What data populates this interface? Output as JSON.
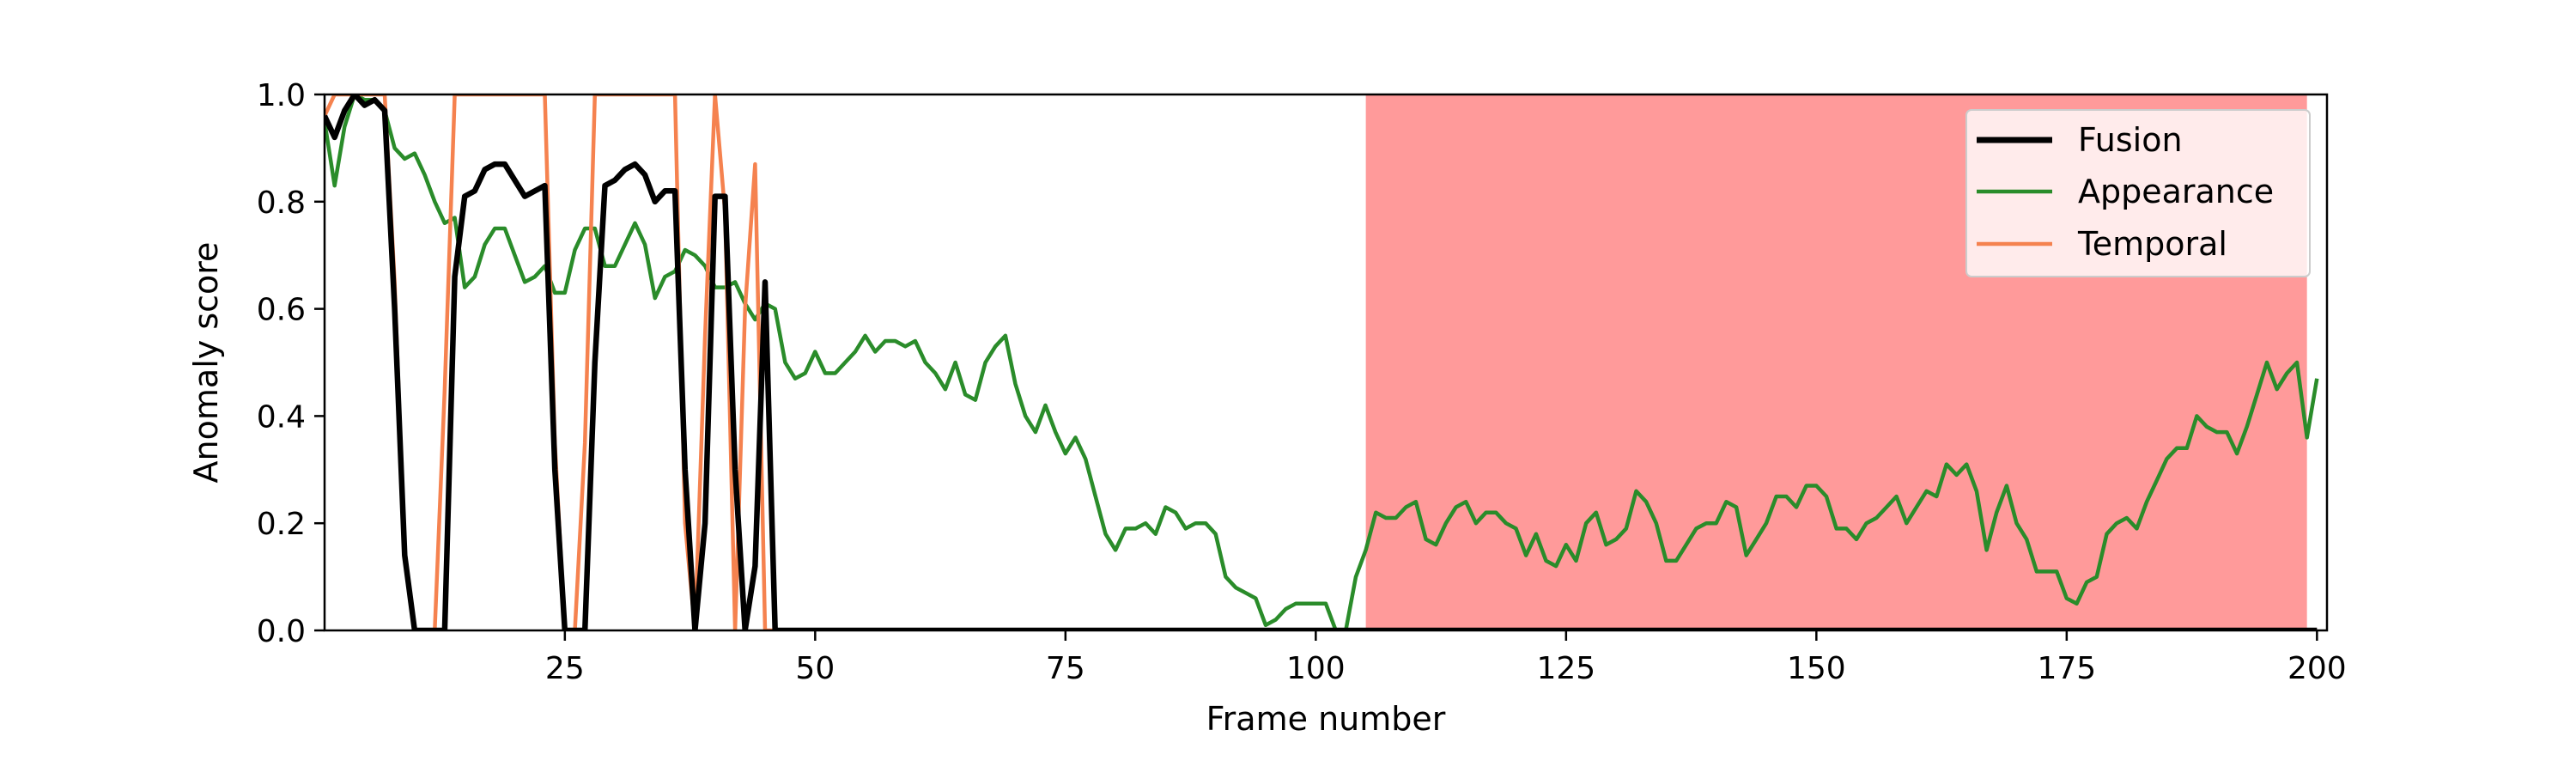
{
  "chart_data": {
    "type": "line",
    "title": "",
    "xlabel": "Frame number",
    "ylabel": "Anomaly score",
    "xlim": [
      1,
      201
    ],
    "ylim": [
      0,
      1.0
    ],
    "xticks": [
      25,
      50,
      75,
      100,
      125,
      150,
      175,
      200
    ],
    "yticks": [
      0.0,
      0.2,
      0.4,
      0.6,
      0.8,
      1.0
    ],
    "xtick_labels": [
      "25",
      "50",
      "75",
      "100",
      "125",
      "150",
      "175",
      "200"
    ],
    "ytick_labels": [
      "0.0",
      "0.2",
      "0.4",
      "0.6",
      "0.8",
      "1.0"
    ],
    "shaded_region": {
      "x_start": 105,
      "x_end": 199,
      "color": "#ff9a9a"
    },
    "grid": false,
    "legend_position": "top-right",
    "series": [
      {
        "name": "Fusion",
        "color": "#000000",
        "points": [
          [
            1,
            0.96
          ],
          [
            2,
            0.92
          ],
          [
            3,
            0.97
          ],
          [
            4,
            1.0
          ],
          [
            5,
            0.98
          ],
          [
            6,
            0.99
          ],
          [
            7,
            0.97
          ],
          [
            8,
            0.6
          ],
          [
            9,
            0.14
          ],
          [
            10,
            0.0
          ],
          [
            11,
            0.0
          ],
          [
            12,
            0.0
          ],
          [
            13,
            0.0
          ],
          [
            14,
            0.66
          ],
          [
            15,
            0.81
          ],
          [
            16,
            0.82
          ],
          [
            17,
            0.86
          ],
          [
            18,
            0.87
          ],
          [
            19,
            0.87
          ],
          [
            20,
            0.84
          ],
          [
            21,
            0.81
          ],
          [
            22,
            0.82
          ],
          [
            23,
            0.83
          ],
          [
            24,
            0.3
          ],
          [
            25,
            0.0
          ],
          [
            26,
            0.0
          ],
          [
            27,
            0.0
          ],
          [
            28,
            0.5
          ],
          [
            29,
            0.83
          ],
          [
            30,
            0.84
          ],
          [
            31,
            0.86
          ],
          [
            32,
            0.87
          ],
          [
            33,
            0.85
          ],
          [
            34,
            0.8
          ],
          [
            35,
            0.82
          ],
          [
            36,
            0.82
          ],
          [
            37,
            0.3
          ],
          [
            38,
            0.0
          ],
          [
            39,
            0.2
          ],
          [
            40,
            0.81
          ],
          [
            41,
            0.81
          ],
          [
            42,
            0.3
          ],
          [
            43,
            0.0
          ],
          [
            44,
            0.12
          ],
          [
            45,
            0.65
          ],
          [
            46,
            0.0
          ],
          [
            47,
            0.0
          ],
          [
            60,
            0.0
          ],
          [
            80,
            0.0
          ],
          [
            100,
            0.0
          ],
          [
            120,
            0.0
          ],
          [
            140,
            0.0
          ],
          [
            160,
            0.0
          ],
          [
            180,
            0.0
          ],
          [
            200,
            0.0
          ]
        ]
      },
      {
        "name": "Appearance",
        "color": "#2a8c2a",
        "points": [
          [
            1,
            0.95
          ],
          [
            2,
            0.83
          ],
          [
            3,
            0.94
          ],
          [
            4,
            1.0
          ],
          [
            5,
            0.99
          ],
          [
            6,
            0.99
          ],
          [
            7,
            0.97
          ],
          [
            8,
            0.9
          ],
          [
            9,
            0.88
          ],
          [
            10,
            0.89
          ],
          [
            11,
            0.85
          ],
          [
            12,
            0.8
          ],
          [
            13,
            0.76
          ],
          [
            14,
            0.77
          ],
          [
            15,
            0.64
          ],
          [
            16,
            0.66
          ],
          [
            17,
            0.72
          ],
          [
            18,
            0.75
          ],
          [
            19,
            0.75
          ],
          [
            20,
            0.7
          ],
          [
            21,
            0.65
          ],
          [
            22,
            0.66
          ],
          [
            23,
            0.68
          ],
          [
            24,
            0.63
          ],
          [
            25,
            0.63
          ],
          [
            26,
            0.71
          ],
          [
            27,
            0.75
          ],
          [
            28,
            0.75
          ],
          [
            29,
            0.68
          ],
          [
            30,
            0.68
          ],
          [
            31,
            0.72
          ],
          [
            32,
            0.76
          ],
          [
            33,
            0.72
          ],
          [
            34,
            0.62
          ],
          [
            35,
            0.66
          ],
          [
            36,
            0.67
          ],
          [
            37,
            0.71
          ],
          [
            38,
            0.7
          ],
          [
            39,
            0.68
          ],
          [
            40,
            0.64
          ],
          [
            41,
            0.64
          ],
          [
            42,
            0.65
          ],
          [
            43,
            0.61
          ],
          [
            44,
            0.58
          ],
          [
            45,
            0.61
          ],
          [
            46,
            0.6
          ],
          [
            47,
            0.5
          ],
          [
            48,
            0.47
          ],
          [
            49,
            0.48
          ],
          [
            50,
            0.52
          ],
          [
            51,
            0.48
          ],
          [
            52,
            0.48
          ],
          [
            53,
            0.5
          ],
          [
            54,
            0.52
          ],
          [
            55,
            0.55
          ],
          [
            56,
            0.52
          ],
          [
            57,
            0.54
          ],
          [
            58,
            0.54
          ],
          [
            59,
            0.53
          ],
          [
            60,
            0.54
          ],
          [
            61,
            0.5
          ],
          [
            62,
            0.48
          ],
          [
            63,
            0.45
          ],
          [
            64,
            0.5
          ],
          [
            65,
            0.44
          ],
          [
            66,
            0.43
          ],
          [
            67,
            0.5
          ],
          [
            68,
            0.53
          ],
          [
            69,
            0.55
          ],
          [
            70,
            0.46
          ],
          [
            71,
            0.4
          ],
          [
            72,
            0.37
          ],
          [
            73,
            0.42
          ],
          [
            74,
            0.37
          ],
          [
            75,
            0.33
          ],
          [
            76,
            0.36
          ],
          [
            77,
            0.32
          ],
          [
            78,
            0.25
          ],
          [
            79,
            0.18
          ],
          [
            80,
            0.15
          ],
          [
            81,
            0.19
          ],
          [
            82,
            0.19
          ],
          [
            83,
            0.2
          ],
          [
            84,
            0.18
          ],
          [
            85,
            0.23
          ],
          [
            86,
            0.22
          ],
          [
            87,
            0.19
          ],
          [
            88,
            0.2
          ],
          [
            89,
            0.2
          ],
          [
            90,
            0.18
          ],
          [
            91,
            0.1
          ],
          [
            92,
            0.08
          ],
          [
            93,
            0.07
          ],
          [
            94,
            0.06
          ],
          [
            95,
            0.01
          ],
          [
            96,
            0.02
          ],
          [
            97,
            0.04
          ],
          [
            98,
            0.05
          ],
          [
            99,
            0.05
          ],
          [
            100,
            0.05
          ],
          [
            101,
            0.05
          ],
          [
            102,
            0.0
          ],
          [
            103,
            0.0
          ],
          [
            104,
            0.1
          ],
          [
            105,
            0.15
          ],
          [
            106,
            0.22
          ],
          [
            107,
            0.21
          ],
          [
            108,
            0.21
          ],
          [
            109,
            0.23
          ],
          [
            110,
            0.24
          ],
          [
            111,
            0.17
          ],
          [
            112,
            0.16
          ],
          [
            113,
            0.2
          ],
          [
            114,
            0.23
          ],
          [
            115,
            0.24
          ],
          [
            116,
            0.2
          ],
          [
            117,
            0.22
          ],
          [
            118,
            0.22
          ],
          [
            119,
            0.2
          ],
          [
            120,
            0.19
          ],
          [
            121,
            0.14
          ],
          [
            122,
            0.18
          ],
          [
            123,
            0.13
          ],
          [
            124,
            0.12
          ],
          [
            125,
            0.16
          ],
          [
            126,
            0.13
          ],
          [
            127,
            0.2
          ],
          [
            128,
            0.22
          ],
          [
            129,
            0.16
          ],
          [
            130,
            0.17
          ],
          [
            131,
            0.19
          ],
          [
            132,
            0.26
          ],
          [
            133,
            0.24
          ],
          [
            134,
            0.2
          ],
          [
            135,
            0.13
          ],
          [
            136,
            0.13
          ],
          [
            137,
            0.16
          ],
          [
            138,
            0.19
          ],
          [
            139,
            0.2
          ],
          [
            140,
            0.2
          ],
          [
            141,
            0.24
          ],
          [
            142,
            0.23
          ],
          [
            143,
            0.14
          ],
          [
            144,
            0.17
          ],
          [
            145,
            0.2
          ],
          [
            146,
            0.25
          ],
          [
            147,
            0.25
          ],
          [
            148,
            0.23
          ],
          [
            149,
            0.27
          ],
          [
            150,
            0.27
          ],
          [
            151,
            0.25
          ],
          [
            152,
            0.19
          ],
          [
            153,
            0.19
          ],
          [
            154,
            0.17
          ],
          [
            155,
            0.2
          ],
          [
            156,
            0.21
          ],
          [
            157,
            0.23
          ],
          [
            158,
            0.25
          ],
          [
            159,
            0.2
          ],
          [
            160,
            0.23
          ],
          [
            161,
            0.26
          ],
          [
            162,
            0.25
          ],
          [
            163,
            0.31
          ],
          [
            164,
            0.29
          ],
          [
            165,
            0.31
          ],
          [
            166,
            0.26
          ],
          [
            167,
            0.15
          ],
          [
            168,
            0.22
          ],
          [
            169,
            0.27
          ],
          [
            170,
            0.2
          ],
          [
            171,
            0.17
          ],
          [
            172,
            0.11
          ],
          [
            173,
            0.11
          ],
          [
            174,
            0.11
          ],
          [
            175,
            0.06
          ],
          [
            176,
            0.05
          ],
          [
            177,
            0.09
          ],
          [
            178,
            0.1
          ],
          [
            179,
            0.18
          ],
          [
            180,
            0.2
          ],
          [
            181,
            0.21
          ],
          [
            182,
            0.19
          ],
          [
            183,
            0.24
          ],
          [
            184,
            0.28
          ],
          [
            185,
            0.32
          ],
          [
            186,
            0.34
          ],
          [
            187,
            0.34
          ],
          [
            188,
            0.4
          ],
          [
            189,
            0.38
          ],
          [
            190,
            0.37
          ],
          [
            191,
            0.37
          ],
          [
            192,
            0.33
          ],
          [
            193,
            0.38
          ],
          [
            194,
            0.44
          ],
          [
            195,
            0.5
          ],
          [
            196,
            0.45
          ],
          [
            197,
            0.48
          ],
          [
            198,
            0.5
          ],
          [
            199,
            0.36
          ],
          [
            200,
            0.47
          ]
        ]
      },
      {
        "name": "Temporal",
        "color": "#f5824f",
        "points": [
          [
            1,
            0.96
          ],
          [
            2,
            1.0
          ],
          [
            3,
            1.0
          ],
          [
            4,
            1.0
          ],
          [
            5,
            1.0
          ],
          [
            6,
            1.0
          ],
          [
            7,
            1.0
          ],
          [
            8,
            0.65
          ],
          [
            9,
            0.14
          ],
          [
            10,
            0.0
          ],
          [
            11,
            0.0
          ],
          [
            12,
            0.0
          ],
          [
            13,
            0.45
          ],
          [
            14,
            1.0
          ],
          [
            15,
            1.0
          ],
          [
            20,
            1.0
          ],
          [
            22,
            1.0
          ],
          [
            23,
            1.0
          ],
          [
            24,
            0.35
          ],
          [
            25,
            0.0
          ],
          [
            26,
            0.0
          ],
          [
            27,
            0.35
          ],
          [
            28,
            1.0
          ],
          [
            29,
            1.0
          ],
          [
            34,
            1.0
          ],
          [
            36,
            1.0
          ],
          [
            37,
            0.2
          ],
          [
            38,
            0.0
          ],
          [
            39,
            0.55
          ],
          [
            40,
            1.0
          ],
          [
            41,
            0.78
          ],
          [
            42,
            0.0
          ],
          [
            43,
            0.6
          ],
          [
            44,
            0.87
          ],
          [
            45,
            0.0
          ],
          [
            46,
            0.0
          ],
          [
            60,
            0.0
          ],
          [
            80,
            0.0
          ],
          [
            100,
            0.0
          ],
          [
            120,
            0.0
          ],
          [
            140,
            0.0
          ],
          [
            160,
            0.0
          ],
          [
            180,
            0.0
          ],
          [
            200,
            0.0
          ]
        ]
      }
    ]
  }
}
